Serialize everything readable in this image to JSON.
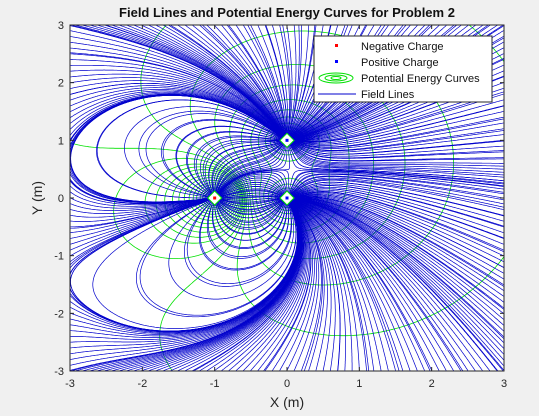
{
  "window": {
    "background": "#f0f0f0"
  },
  "chart_data": {
    "type": "scatter",
    "title": "Field Lines and Potential Energy Curves for Problem 2",
    "xlabel": "X (m)",
    "ylabel": "Y (m)",
    "xlim": [
      -3,
      3
    ],
    "ylim": [
      -3,
      3
    ],
    "xticks": [
      -3,
      -2,
      -1,
      0,
      1,
      2,
      3
    ],
    "yticks": [
      -3,
      -2,
      -1,
      0,
      1,
      2,
      3
    ],
    "grid": false,
    "legend_position": "top-right",
    "charges": [
      {
        "x": -1,
        "y": 0,
        "kind": "negative"
      },
      {
        "x": 0,
        "y": 0,
        "kind": "positive"
      },
      {
        "x": 0,
        "y": 1,
        "kind": "positive"
      }
    ],
    "series": [
      {
        "name": "Negative Charge",
        "style": "marker",
        "color": "#ff0000"
      },
      {
        "name": "Positive Charge",
        "style": "marker",
        "color": "#0000ff"
      },
      {
        "name": "Potential Energy Curves",
        "style": "contour",
        "color": "#00e000"
      },
      {
        "name": "Field Lines",
        "style": "line",
        "color": "#0000cc"
      }
    ]
  }
}
